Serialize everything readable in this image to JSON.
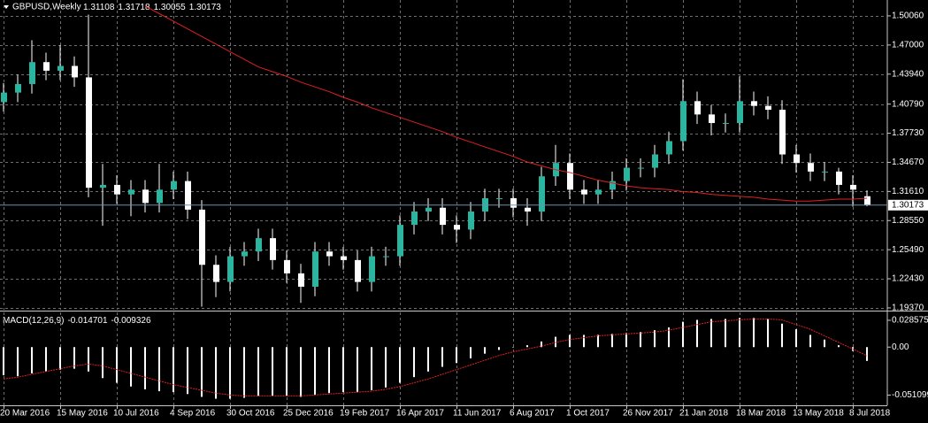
{
  "chart_data": {
    "type": "candlestick",
    "title": "GBPUSD,Weekly",
    "categories": [
      "20 Mar 2016",
      null,
      null,
      null,
      "15 May 2016",
      null,
      null,
      null,
      "10 Jul 2016",
      null,
      null,
      null,
      "4 Sep 2016",
      null,
      null,
      null,
      "30 Oct 2016",
      null,
      null,
      null,
      "25 Dec 2016",
      null,
      null,
      null,
      "19 Feb 2017",
      null,
      null,
      null,
      "16 Apr 2017",
      null,
      null,
      null,
      "11 Jun 2017",
      null,
      null,
      null,
      "6 Aug 2017",
      null,
      null,
      null,
      "1 Oct 2017",
      null,
      null,
      null,
      "26 Nov 2017",
      null,
      null,
      null,
      "21 Jan 2018",
      null,
      null,
      null,
      "18 Mar 2018",
      null,
      null,
      null,
      "13 May 2018",
      null,
      null,
      null,
      "8 Jul 2018",
      null
    ],
    "open": [
      1.41,
      1.42,
      1.429,
      1.452,
      1.443,
      1.448,
      1.436,
      1.32,
      1.323,
      1.313,
      1.318,
      1.304,
      1.318,
      1.327,
      1.297,
      1.239,
      1.221,
      1.248,
      1.253,
      1.267,
      1.244,
      1.23,
      1.216,
      1.253,
      1.248,
      1.244,
      1.221,
      1.248,
      1.248,
      1.281,
      1.295,
      1.299,
      1.281,
      1.276,
      1.295,
      1.309,
      1.309,
      1.299,
      1.295,
      1.332,
      1.346,
      1.318,
      1.313,
      1.318,
      1.327,
      1.341,
      1.341,
      1.355,
      1.369,
      1.411,
      1.397,
      1.388,
      1.388,
      1.411,
      1.406,
      1.402,
      1.355,
      1.346,
      1.337,
      1.337,
      1.323,
      1.31108
    ],
    "high": [
      1.43,
      1.439,
      1.475,
      1.462,
      1.47,
      1.458,
      1.502,
      1.345,
      1.333,
      1.328,
      1.328,
      1.345,
      1.337,
      1.337,
      1.307,
      1.249,
      1.258,
      1.263,
      1.277,
      1.277,
      1.254,
      1.24,
      1.263,
      1.263,
      1.258,
      1.254,
      1.258,
      1.258,
      1.291,
      1.305,
      1.309,
      1.309,
      1.291,
      1.305,
      1.319,
      1.319,
      1.319,
      1.309,
      1.342,
      1.365,
      1.356,
      1.328,
      1.328,
      1.337,
      1.351,
      1.351,
      1.365,
      1.379,
      1.434,
      1.421,
      1.407,
      1.398,
      1.437,
      1.421,
      1.416,
      1.412,
      1.365,
      1.356,
      1.347,
      1.341,
      1.333,
      1.31718
    ],
    "low": [
      1.4,
      1.41,
      1.419,
      1.433,
      1.433,
      1.426,
      1.31,
      1.28,
      1.303,
      1.29,
      1.294,
      1.294,
      1.308,
      1.287,
      1.195,
      1.205,
      1.211,
      1.238,
      1.243,
      1.234,
      1.22,
      1.199,
      1.206,
      1.238,
      1.234,
      1.211,
      1.211,
      1.238,
      1.238,
      1.271,
      1.285,
      1.271,
      1.262,
      1.266,
      1.285,
      1.299,
      1.289,
      1.28,
      1.285,
      1.322,
      1.308,
      1.303,
      1.303,
      1.308,
      1.317,
      1.331,
      1.331,
      1.345,
      1.359,
      1.387,
      1.375,
      1.378,
      1.378,
      1.396,
      1.392,
      1.345,
      1.336,
      1.327,
      1.327,
      1.313,
      1.3,
      1.30055
    ],
    "close": [
      1.42,
      1.429,
      1.452,
      1.443,
      1.448,
      1.436,
      1.32,
      1.323,
      1.313,
      1.318,
      1.304,
      1.318,
      1.327,
      1.297,
      1.239,
      1.221,
      1.248,
      1.253,
      1.267,
      1.244,
      1.23,
      1.216,
      1.253,
      1.248,
      1.244,
      1.221,
      1.248,
      1.248,
      1.281,
      1.295,
      1.299,
      1.281,
      1.276,
      1.295,
      1.309,
      1.309,
      1.299,
      1.295,
      1.332,
      1.346,
      1.318,
      1.313,
      1.318,
      1.327,
      1.341,
      1.341,
      1.355,
      1.369,
      1.411,
      1.397,
      1.388,
      1.388,
      1.411,
      1.406,
      1.402,
      1.355,
      1.346,
      1.337,
      1.337,
      1.323,
      1.318,
      1.30173
    ],
    "up_color": "#2ab5a0",
    "down_color": "#ffffff",
    "wick_color": "#ffffff",
    "ma": {
      "color": "#e02020",
      "values": [
        null,
        null,
        null,
        null,
        null,
        null,
        null,
        null,
        null,
        null,
        1.511,
        1.503,
        1.495,
        1.487,
        1.479,
        1.471,
        1.463,
        1.455,
        1.447,
        1.442,
        1.437,
        1.431,
        1.426,
        1.421,
        1.415,
        1.41,
        1.404,
        1.399,
        1.394,
        1.389,
        1.384,
        1.379,
        1.373,
        1.368,
        1.363,
        1.358,
        1.353,
        1.347,
        1.343,
        1.339,
        1.336,
        1.332,
        1.328,
        1.325,
        1.322,
        1.32,
        1.319,
        1.318,
        1.316,
        1.315,
        1.313,
        1.312,
        1.311,
        1.31,
        1.308,
        1.307,
        1.306,
        1.306,
        1.307,
        1.308,
        1.308,
        1.309
      ]
    },
    "price_line_color": "#6f8fb0",
    "ylim": [
      1.1918,
      1.5173
    ],
    "yticks": [
      {
        "value": 1.5006,
        "label": "1.50060"
      },
      {
        "value": 1.47,
        "label": "1.47000"
      },
      {
        "value": 1.4394,
        "label": "1.43940"
      },
      {
        "value": 1.4079,
        "label": "1.40790"
      },
      {
        "value": 1.3773,
        "label": "1.37730"
      },
      {
        "value": 1.3467,
        "label": "1.34670"
      },
      {
        "value": 1.3161,
        "label": "1.31610"
      },
      {
        "value": 1.2855,
        "label": "1.28550"
      },
      {
        "value": 1.2549,
        "label": "1.25490"
      },
      {
        "value": 1.2243,
        "label": "1.22430"
      },
      {
        "value": 1.1937,
        "label": "1.19370"
      }
    ],
    "grid": true,
    "macd": {
      "name": "MACD(12,26,9)",
      "histogram_color": "#ffffff",
      "signal_color": "#e02020",
      "histogram": [
        -0.03,
        -0.031,
        -0.028,
        -0.026,
        -0.024,
        -0.023,
        -0.026,
        -0.033,
        -0.038,
        -0.042,
        -0.045,
        -0.047,
        -0.048,
        -0.05,
        -0.053,
        -0.055,
        -0.055,
        -0.054,
        -0.052,
        -0.052,
        -0.052,
        -0.053,
        -0.051,
        -0.049,
        -0.048,
        -0.048,
        -0.046,
        -0.043,
        -0.038,
        -0.032,
        -0.026,
        -0.021,
        -0.017,
        -0.012,
        -0.007,
        -0.003,
        0.0,
        0.002,
        0.006,
        0.011,
        0.013,
        0.013,
        0.013,
        0.014,
        0.015,
        0.016,
        0.018,
        0.021,
        0.027,
        0.029,
        0.03,
        0.03,
        0.031,
        0.031,
        0.03,
        0.025,
        0.019,
        0.013,
        0.008,
        0.002,
        -0.004,
        -0.014701
      ],
      "signal": [
        -0.034,
        -0.032,
        -0.029,
        -0.026,
        -0.023,
        -0.02,
        -0.018,
        -0.02,
        -0.024,
        -0.028,
        -0.032,
        -0.036,
        -0.04,
        -0.043,
        -0.046,
        -0.049,
        -0.051,
        -0.052,
        -0.052,
        -0.052,
        -0.052,
        -0.052,
        -0.051,
        -0.05,
        -0.049,
        -0.048,
        -0.047,
        -0.045,
        -0.042,
        -0.038,
        -0.034,
        -0.029,
        -0.024,
        -0.019,
        -0.014,
        -0.009,
        -0.005,
        -0.002,
        0.001,
        0.005,
        0.008,
        0.01,
        0.012,
        0.013,
        0.014,
        0.015,
        0.016,
        0.018,
        0.021,
        0.024,
        0.027,
        0.028,
        0.029,
        0.03,
        0.03,
        0.029,
        0.024,
        0.019,
        0.012,
        0.005,
        -0.002,
        -0.009326
      ],
      "ylim": [
        -0.062,
        0.037
      ],
      "yticks": [
        0.028575,
        {
          "value": 0,
          "label": "0.00"
        },
        -0.051099
      ]
    }
  }
}
